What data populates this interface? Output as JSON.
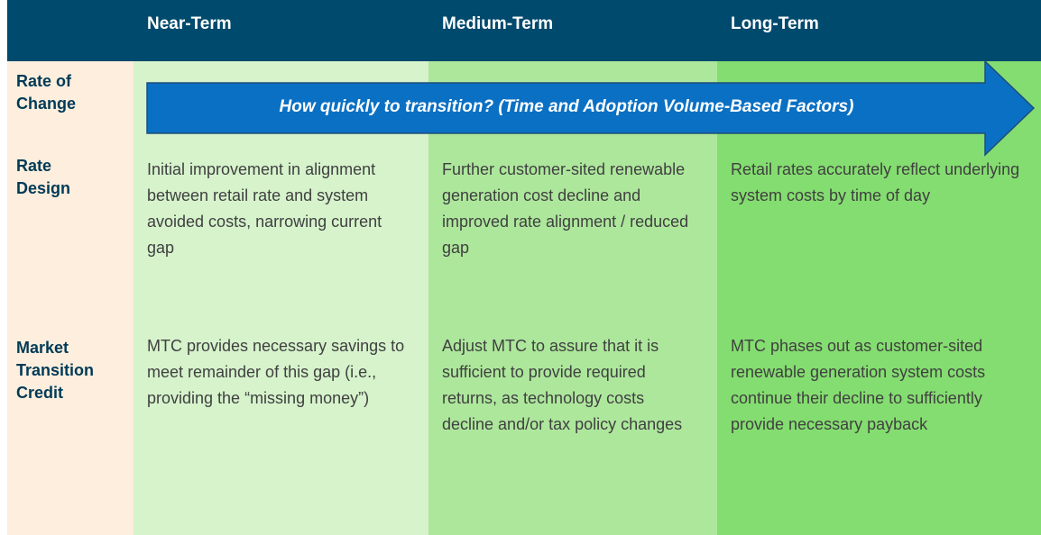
{
  "header": {
    "columns": [
      "Near-Term",
      "Medium-Term",
      "Long-Term"
    ]
  },
  "rows": [
    {
      "label": "Rate of Change",
      "arrow": "How quickly to transition? (Time and Adoption Volume-Based Factors)"
    },
    {
      "label": "Rate Design",
      "cells": [
        "Initial improvement in alignment between retail rate and system avoided costs, narrowing current gap",
        "Further customer-sited renewable generation cost decline and improved rate alignment / reduced gap",
        "Retail rates accurately reflect underlying system costs by time of day"
      ]
    },
    {
      "label": "Market Transition Credit",
      "cells": [
        "MTC provides necessary savings to meet remainder of this gap (i.e., providing the “missing money”)",
        "Adjust MTC to assure that it is sufficient to provide required returns, as technology costs decline and/or tax policy changes",
        "MTC phases out as customer-sited renewable generation system costs continue their decline to sufficiently provide necessary payback"
      ]
    }
  ]
}
